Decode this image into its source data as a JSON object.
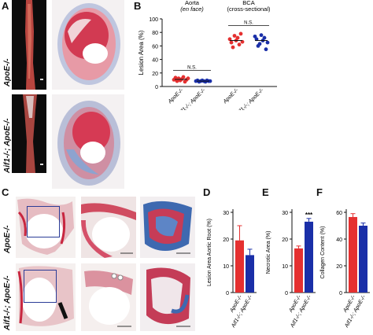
{
  "panels": {
    "A": {
      "letter": "A",
      "row_labels": [
        "ApoE-/-",
        "Aif1-/-; ApoE-/-"
      ]
    },
    "B": {
      "letter": "B"
    },
    "C": {
      "letter": "C",
      "row_labels": [
        "ApoE-/-",
        "Aif1-/-; ApoE-/-"
      ]
    },
    "D": {
      "letter": "D"
    },
    "E": {
      "letter": "E"
    },
    "F": {
      "letter": "F"
    }
  },
  "colors": {
    "wt": "#e53030",
    "ko": "#1a2fa8",
    "stain_red": "#c8263f",
    "stain_blue": "#4a6fb4",
    "box": "#2b3c97"
  },
  "chart_data": [
    {
      "id": "B",
      "type": "scatter",
      "ylabel": "Lesion Area (%)",
      "ylim": [
        0,
        100
      ],
      "yticks": [
        0,
        20,
        40,
        60,
        80,
        100
      ],
      "group_titles": [
        {
          "line1": "Aorta",
          "line2": "(en face)"
        },
        {
          "line1": "BCA",
          "line2": "(cross-sectional)"
        }
      ],
      "categories": [
        "ApoE-/-",
        "Aif1-/-; ApoE-/-",
        "ApoE-/-",
        "Aif1-/-; ApoE-/-"
      ],
      "annotations": [
        "N.S.",
        "N.S."
      ],
      "series": [
        {
          "values": [
            10,
            13,
            8,
            12,
            9,
            11,
            14,
            7,
            10,
            12
          ],
          "mean": 10.5
        },
        {
          "values": [
            8,
            9,
            7,
            8,
            9,
            8,
            7,
            9,
            8,
            8
          ],
          "mean": 8
        },
        {
          "values": [
            70,
            65,
            58,
            75,
            68,
            72,
            62,
            78,
            66
          ],
          "mean": 68
        },
        {
          "values": [
            74,
            70,
            60,
            63,
            76,
            68,
            72,
            55,
            65
          ],
          "mean": 68
        }
      ]
    },
    {
      "id": "D",
      "type": "bar",
      "ylabel": "Lesion Area Aortic Root (%)",
      "ylim": [
        0,
        30
      ],
      "yticks": [
        0,
        10,
        20,
        30
      ],
      "categories": [
        "ApoE-/-",
        "Aif1-/-; ApoE-/-"
      ],
      "values": [
        19.5,
        14
      ],
      "errors": [
        5.5,
        2.2
      ],
      "significance": ""
    },
    {
      "id": "E",
      "type": "bar",
      "ylabel": "Necrotic Area (%)",
      "ylim": [
        0,
        30
      ],
      "yticks": [
        0,
        10,
        20,
        30
      ],
      "categories": [
        "ApoE-/-",
        "Aif1-/-; ApoE-/-"
      ],
      "values": [
        16.5,
        26.5
      ],
      "errors": [
        0.9,
        1.2
      ],
      "significance": "***"
    },
    {
      "id": "F",
      "type": "bar",
      "ylabel": "Collagen Content (%)",
      "ylim": [
        0,
        60
      ],
      "yticks": [
        0,
        20,
        40,
        60
      ],
      "categories": [
        "ApoE-/-",
        "Aif1-/-; ApoE-/-"
      ],
      "values": [
        56.5,
        50
      ],
      "errors": [
        2.5,
        2
      ],
      "significance": ""
    }
  ]
}
